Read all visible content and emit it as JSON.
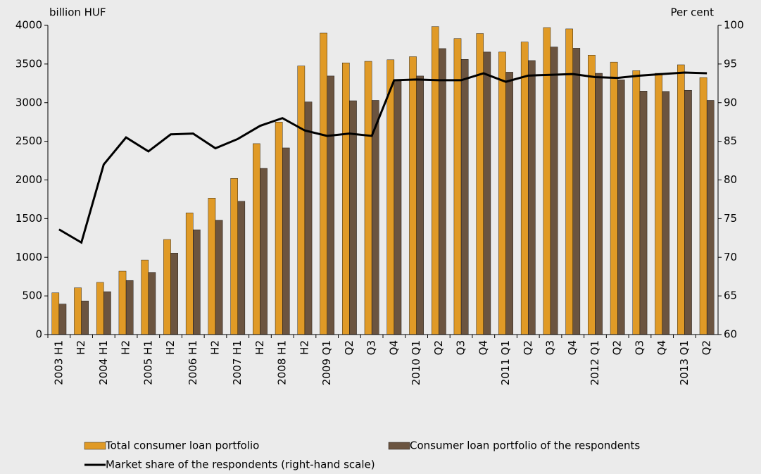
{
  "chart_data": {
    "type": "bar",
    "y_label": "billion HUF",
    "y2_label": "Per cent",
    "categories": [
      "2003 H1",
      "H2",
      "2004 H1",
      "H2",
      "2005 H1",
      "H2",
      "2006 H1",
      "H2",
      "2007 H1",
      "H2",
      "2008 H1",
      "H2",
      "2009 Q1",
      "Q2",
      "Q3",
      "Q4",
      "2010 Q1",
      "Q2",
      "Q3",
      "Q4",
      "2011 Q1",
      "Q2",
      "Q3",
      "Q4",
      "2012 Q1",
      "Q2",
      "Q3",
      "Q4",
      "2013 Q1",
      "Q2"
    ],
    "series": [
      {
        "name": "Total consumer loan portfolio",
        "type": "bar",
        "color": "#e09a26",
        "values": [
          540,
          605,
          675,
          820,
          965,
          1230,
          1575,
          1765,
          2020,
          2470,
          2750,
          3475,
          3900,
          3515,
          3535,
          3555,
          3595,
          3985,
          3830,
          3895,
          3655,
          3785,
          3970,
          3955,
          3615,
          3525,
          3415,
          3380,
          3490,
          3325
        ]
      },
      {
        "name": "Consumer loan portfolio of the respondents",
        "type": "bar",
        "color": "#6b5440",
        "values": [
          395,
          435,
          555,
          700,
          805,
          1055,
          1355,
          1480,
          1725,
          2150,
          2415,
          3010,
          3345,
          3025,
          3030,
          3280,
          3345,
          3700,
          3560,
          3655,
          3395,
          3545,
          3720,
          3705,
          3380,
          3295,
          3150,
          3145,
          3160,
          3030
        ]
      },
      {
        "name": "Market share of the respondents (right-hand scale)",
        "type": "line",
        "color": "#000000",
        "axis": "y2",
        "values": [
          73.6,
          71.9,
          82,
          85.5,
          83.7,
          85.9,
          86,
          84.1,
          85.3,
          87,
          88,
          86.4,
          85.7,
          86,
          85.7,
          92.9,
          93,
          92.9,
          92.9,
          93.8,
          92.7,
          93.5,
          93.6,
          93.7,
          93.3,
          93.2,
          93.5,
          93.7,
          93.9,
          93.8
        ]
      }
    ],
    "ylim": [
      0,
      4000
    ],
    "yticks": [
      0,
      500,
      1000,
      1500,
      2000,
      2500,
      3000,
      3500,
      4000
    ],
    "y2lim": [
      60,
      100
    ],
    "y2ticks": [
      60,
      65,
      70,
      75,
      80,
      85,
      90,
      95,
      100
    ],
    "grid": false
  }
}
